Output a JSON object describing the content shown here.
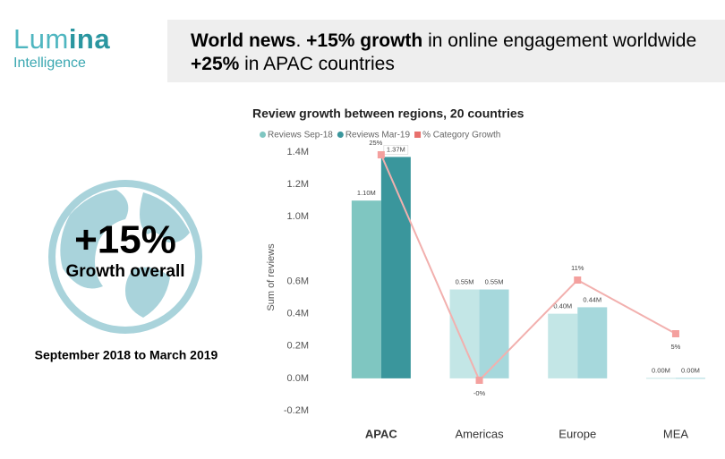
{
  "header": {
    "logo": {
      "part1": "Lum",
      "part2": "ina",
      "subtitle": "Intelligence"
    },
    "headline": [
      [
        {
          "text": "World news",
          "bold": true
        },
        {
          "text": ". ",
          "bold": false
        },
        {
          "text": "+15% growth",
          "bold": true
        },
        {
          "text": " in online engagement worldwide",
          "bold": false
        }
      ],
      [
        {
          "text": "+25%",
          "bold": true
        },
        {
          "text": " in APAC countries",
          "bold": false
        }
      ]
    ]
  },
  "kpi": {
    "value": "+15%",
    "label": "Growth overall",
    "period": "September 2018 to March 2019"
  },
  "chart_data": {
    "type": "bar",
    "title": "Review growth between regions, 20 countries",
    "y_label": "Sum of reviews",
    "categories": [
      "APAC",
      "Americas",
      "Europe",
      "MEA"
    ],
    "selected_category": "APAC",
    "series": [
      {
        "name": "Reviews Sep-18",
        "color": "#7fc6c1",
        "colors": [
          "#7fc6c1",
          "#c3e6e6",
          "#c3e6e6",
          "#c3e6e6"
        ],
        "values": [
          1100000,
          550000,
          400000,
          3000
        ],
        "value_labels": [
          "1.10M",
          "0.55M",
          "0.40M",
          "0.00M"
        ]
      },
      {
        "name": "Reviews Mar-19",
        "color": "#3a969c",
        "colors": [
          "#3a969c",
          "#a6d8dc",
          "#a6d8dc",
          "#a6d8dc"
        ],
        "values": [
          1370000,
          550000,
          440000,
          3000
        ],
        "value_labels": [
          "1.37M",
          "0.55M",
          "0.44M",
          "0.00M"
        ]
      },
      {
        "name": "% Category Growth",
        "type": "line",
        "axis": "y2",
        "color": "#f2b0ae",
        "marker_color": "#f4a09e",
        "legend_color": "#e8706c",
        "values": [
          25,
          -0.2,
          11,
          5
        ],
        "value_labels": [
          "25%",
          "-0%",
          "11%",
          "5%"
        ]
      }
    ],
    "ylim": [
      -200000,
      1400000
    ],
    "yticks": [
      {
        "value": -200000,
        "label": "-0.2M"
      },
      {
        "value": 0,
        "label": "0.0M"
      },
      {
        "value": 200000,
        "label": "0.2M"
      },
      {
        "value": 400000,
        "label": "0.4M"
      },
      {
        "value": 600000,
        "label": "0.6M"
      },
      {
        "value": 1000000,
        "label": "1.0M"
      },
      {
        "value": 1200000,
        "label": "1.2M"
      },
      {
        "value": 1400000,
        "label": "1.4M"
      }
    ],
    "y2lim": [
      -3.6,
      25.3
    ],
    "grid": false
  }
}
